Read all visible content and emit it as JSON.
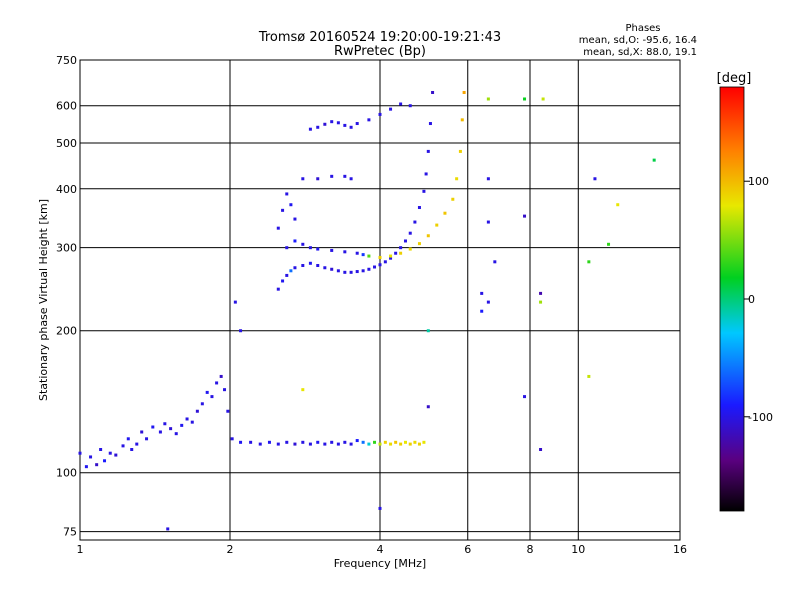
{
  "chart_data": {
    "type": "scatter",
    "title": "Tromsø 20160524 19:20:00-19:21:43",
    "subtitle": "RwPretec (Bp)",
    "xlabel": "Frequency [MHz]",
    "ylabel": "Stationary phase Virtual Height [km]",
    "xscale": "log",
    "yscale": "log",
    "xlim": [
      1,
      16
    ],
    "ylim": [
      72,
      750
    ],
    "xticks": [
      "1",
      "2",
      "4",
      "6",
      "8",
      "10",
      "16"
    ],
    "xtick_values": [
      1,
      2,
      4,
      6,
      8,
      10,
      16
    ],
    "yticks": [
      "750",
      "600",
      "500",
      "400",
      "300",
      "200",
      "100",
      "75"
    ],
    "ytick_values": [
      750,
      600,
      500,
      400,
      300,
      200,
      100,
      75
    ],
    "grid": true,
    "stats": {
      "heading": "Phases",
      "line_o": "mean, sd,O: -95.6, 16.4",
      "line_x": "mean, sd,X:  88.0, 19.1"
    },
    "colorbar": {
      "label": "[deg]",
      "range": [
        -180,
        180
      ],
      "ticks": [
        "100",
        "0",
        "-100"
      ],
      "tick_values": [
        100,
        0,
        -100
      ]
    },
    "series": [
      {
        "points": [
          [
            1.0,
            110,
            -100
          ],
          [
            1.03,
            103,
            -95
          ],
          [
            1.05,
            108,
            -100
          ],
          [
            1.08,
            104,
            -110
          ],
          [
            1.1,
            112,
            -100
          ],
          [
            1.12,
            106,
            -90
          ],
          [
            1.15,
            110,
            -100
          ],
          [
            1.18,
            109,
            -105
          ],
          [
            1.22,
            114,
            -100
          ],
          [
            1.25,
            118,
            -95
          ],
          [
            1.27,
            112,
            -100
          ],
          [
            1.3,
            115,
            -100
          ],
          [
            1.33,
            122,
            -105
          ],
          [
            1.36,
            118,
            -100
          ],
          [
            1.4,
            125,
            -95
          ],
          [
            1.45,
            122,
            -100
          ],
          [
            1.48,
            127,
            -100
          ],
          [
            1.52,
            124,
            -105
          ],
          [
            1.56,
            121,
            -100
          ],
          [
            1.6,
            126,
            -95
          ],
          [
            1.64,
            130,
            -100
          ],
          [
            1.68,
            128,
            -100
          ],
          [
            1.72,
            135,
            -105
          ],
          [
            1.76,
            140,
            -100
          ],
          [
            1.8,
            148,
            -95
          ],
          [
            1.84,
            145,
            -100
          ],
          [
            1.88,
            155,
            -100
          ],
          [
            1.92,
            160,
            -110
          ],
          [
            1.95,
            150,
            -100
          ],
          [
            1.98,
            135,
            -100
          ],
          [
            2.02,
            118,
            -100
          ],
          [
            2.1,
            116,
            -95
          ],
          [
            2.2,
            116,
            -100
          ],
          [
            2.3,
            115,
            -100
          ],
          [
            2.4,
            116,
            -95
          ],
          [
            2.5,
            115,
            -100
          ],
          [
            2.6,
            116,
            -100
          ],
          [
            2.7,
            115,
            -105
          ],
          [
            2.8,
            116,
            -100
          ],
          [
            2.9,
            115,
            -100
          ],
          [
            3.0,
            116,
            -95
          ],
          [
            3.1,
            115,
            -100
          ],
          [
            3.2,
            116,
            -100
          ],
          [
            3.3,
            115,
            -100
          ],
          [
            3.4,
            116,
            -100
          ],
          [
            3.5,
            115,
            -100
          ],
          [
            3.6,
            117,
            -90
          ],
          [
            3.7,
            116,
            -60
          ],
          [
            3.8,
            115,
            -20
          ],
          [
            3.9,
            116,
            30
          ],
          [
            4.0,
            115,
            70
          ],
          [
            4.1,
            116,
            90
          ],
          [
            4.2,
            115,
            85
          ],
          [
            4.3,
            116,
            95
          ],
          [
            4.4,
            115,
            90
          ],
          [
            4.5,
            116,
            80
          ],
          [
            4.6,
            115,
            90
          ],
          [
            4.7,
            116,
            85
          ],
          [
            4.8,
            115,
            90
          ],
          [
            4.9,
            116,
            80
          ],
          [
            2.5,
            245,
            -100
          ],
          [
            2.55,
            255,
            -95
          ],
          [
            2.6,
            262,
            -100
          ],
          [
            2.65,
            268,
            -60
          ],
          [
            2.7,
            272,
            -100
          ],
          [
            2.8,
            275,
            -100
          ],
          [
            2.9,
            278,
            -95
          ],
          [
            3.0,
            275,
            -100
          ],
          [
            3.1,
            272,
            -100
          ],
          [
            3.2,
            270,
            -105
          ],
          [
            3.3,
            268,
            -100
          ],
          [
            3.4,
            266,
            -100
          ],
          [
            3.5,
            266,
            -100
          ],
          [
            3.6,
            267,
            -100
          ],
          [
            3.7,
            268,
            -100
          ],
          [
            3.8,
            270,
            -100
          ],
          [
            3.9,
            273,
            -100
          ],
          [
            4.0,
            276,
            -100
          ],
          [
            4.1,
            280,
            -100
          ],
          [
            4.2,
            285,
            -100
          ],
          [
            4.3,
            292,
            -100
          ],
          [
            4.4,
            300,
            -100
          ],
          [
            4.5,
            310,
            -100
          ],
          [
            4.6,
            322,
            -100
          ],
          [
            4.7,
            340,
            -100
          ],
          [
            4.8,
            365,
            -100
          ],
          [
            4.9,
            395,
            -100
          ],
          [
            4.95,
            430,
            -100
          ],
          [
            5.0,
            480,
            -100
          ],
          [
            5.05,
            550,
            -100
          ],
          [
            5.1,
            640,
            -110
          ],
          [
            2.6,
            300,
            -100
          ],
          [
            2.7,
            310,
            -90
          ],
          [
            2.8,
            305,
            -100
          ],
          [
            2.9,
            300,
            -100
          ],
          [
            3.0,
            298,
            -95
          ],
          [
            3.2,
            296,
            -100
          ],
          [
            3.4,
            294,
            -100
          ],
          [
            3.6,
            292,
            -100
          ],
          [
            3.7,
            290,
            -80
          ],
          [
            3.8,
            288,
            40
          ],
          [
            4.0,
            286,
            90
          ],
          [
            4.2,
            288,
            80
          ],
          [
            4.4,
            292,
            90
          ],
          [
            4.6,
            298,
            85
          ],
          [
            4.8,
            306,
            90
          ],
          [
            5.0,
            318,
            95
          ],
          [
            5.2,
            335,
            90
          ],
          [
            5.4,
            355,
            95
          ],
          [
            5.6,
            380,
            90
          ],
          [
            5.7,
            420,
            85
          ],
          [
            5.8,
            480,
            90
          ],
          [
            5.85,
            560,
            100
          ],
          [
            5.9,
            640,
            110
          ],
          [
            2.5,
            330,
            -100
          ],
          [
            2.55,
            360,
            -100
          ],
          [
            2.6,
            390,
            -100
          ],
          [
            2.65,
            370,
            -95
          ],
          [
            2.7,
            345,
            -100
          ],
          [
            2.8,
            420,
            -100
          ],
          [
            3.0,
            420,
            -105
          ],
          [
            3.2,
            425,
            -100
          ],
          [
            3.4,
            425,
            -100
          ],
          [
            3.5,
            420,
            -100
          ],
          [
            2.9,
            535,
            -100
          ],
          [
            3.0,
            540,
            -100
          ],
          [
            3.1,
            548,
            -105
          ],
          [
            3.2,
            555,
            -100
          ],
          [
            3.3,
            552,
            -100
          ],
          [
            3.4,
            545,
            -100
          ],
          [
            3.5,
            540,
            -100
          ],
          [
            3.6,
            550,
            -100
          ],
          [
            3.8,
            560,
            -100
          ],
          [
            4.0,
            575,
            -100
          ],
          [
            4.2,
            590,
            -100
          ],
          [
            4.4,
            605,
            -100
          ],
          [
            4.6,
            600,
            -100
          ],
          [
            2.05,
            230,
            -100
          ],
          [
            2.1,
            200,
            -100
          ],
          [
            2.8,
            150,
            80
          ],
          [
            5.0,
            200,
            -10
          ],
          [
            5.0,
            138,
            -110
          ],
          [
            6.4,
            240,
            -100
          ],
          [
            6.4,
            220,
            -90
          ],
          [
            6.6,
            230,
            -100
          ],
          [
            6.6,
            340,
            -100
          ],
          [
            6.6,
            420,
            -100
          ],
          [
            6.8,
            280,
            -100
          ],
          [
            7.8,
            350,
            -110
          ],
          [
            7.8,
            145,
            -100
          ],
          [
            8.4,
            240,
            -120
          ],
          [
            8.4,
            230,
            60
          ],
          [
            8.4,
            112,
            -110
          ],
          [
            8.5,
            620,
            70
          ],
          [
            7.8,
            620,
            20
          ],
          [
            6.6,
            620,
            60
          ],
          [
            10.5,
            160,
            70
          ],
          [
            10.5,
            280,
            30
          ],
          [
            10.8,
            420,
            -100
          ],
          [
            12.0,
            370,
            80
          ],
          [
            11.5,
            305,
            30
          ],
          [
            14.2,
            460,
            10
          ],
          [
            4.0,
            84,
            -100
          ],
          [
            1.5,
            76,
            -100
          ]
        ]
      }
    ]
  }
}
